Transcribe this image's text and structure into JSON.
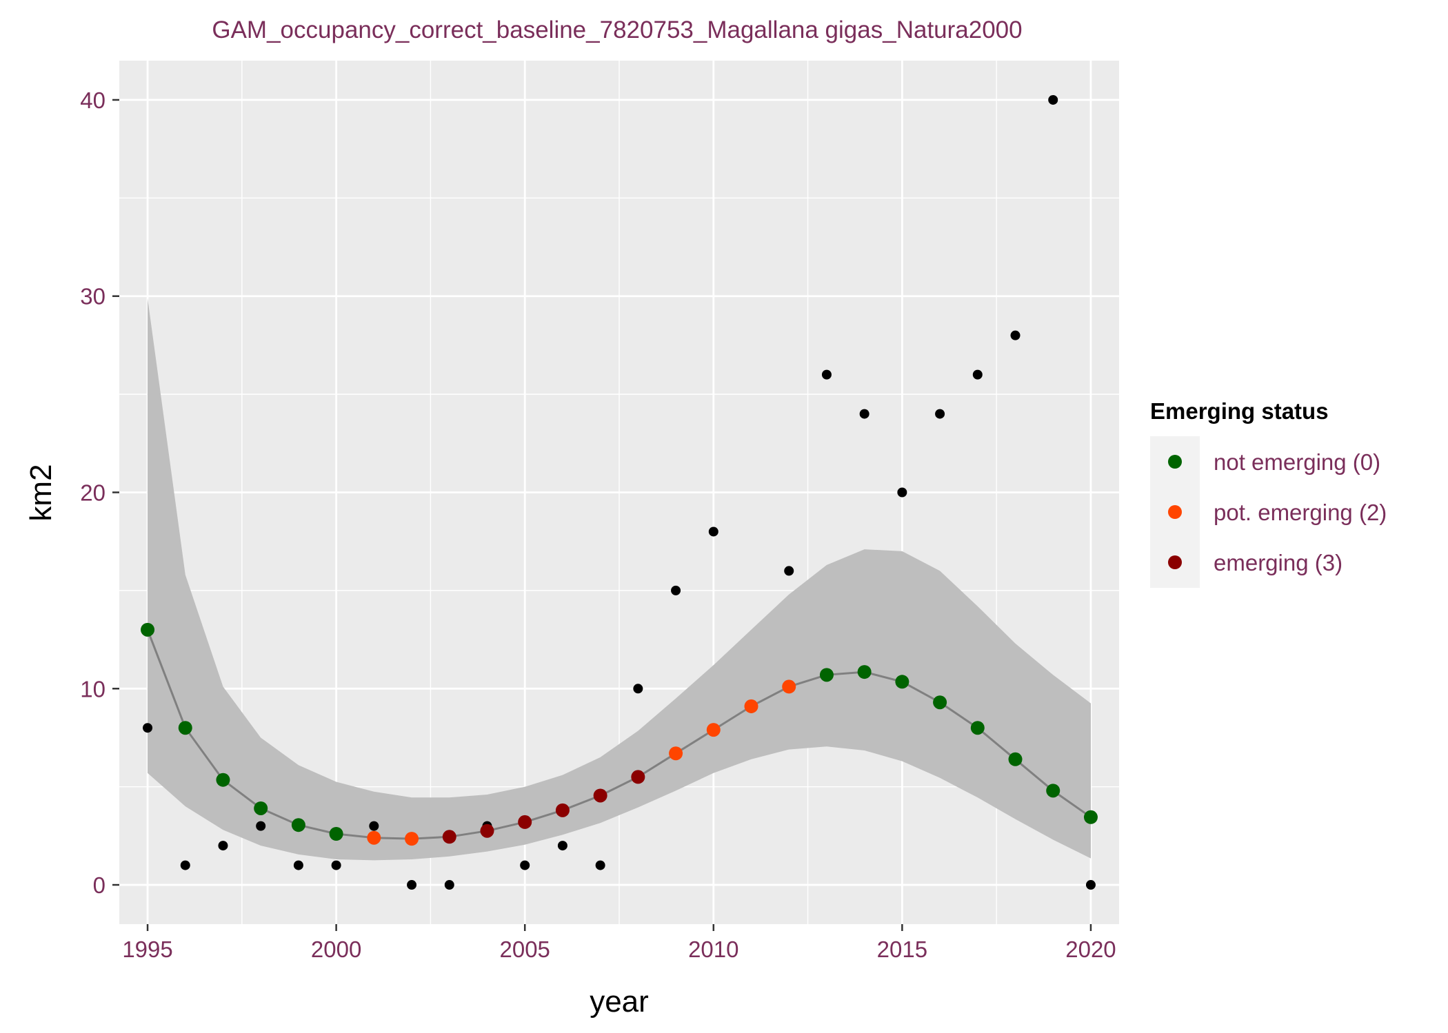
{
  "chart_data": {
    "type": "line",
    "title": "GAM_occupancy_correct_baseline_7820753_Magallana gigas_Natura2000",
    "xlabel": "year",
    "ylabel": "km2",
    "xlim": [
      1994.25,
      2020.75
    ],
    "ylim": [
      -2,
      42
    ],
    "x_ticks": [
      1995,
      2000,
      2005,
      2010,
      2015,
      2020
    ],
    "y_ticks": [
      0,
      10,
      20,
      30,
      40
    ],
    "grid": true,
    "observed_points": {
      "x": [
        1995,
        1996,
        1997,
        1998,
        1999,
        2000,
        2001,
        2002,
        2003,
        2004,
        2005,
        2006,
        2007,
        2008,
        2009,
        2010,
        2011,
        2012,
        2013,
        2014,
        2015,
        2016,
        2017,
        2018,
        2019,
        2020
      ],
      "y": [
        8,
        1,
        2,
        3,
        1,
        1,
        3,
        0,
        0,
        3,
        1,
        2,
        1,
        10,
        15,
        18,
        9,
        16,
        26,
        24,
        20,
        24,
        26,
        28,
        40,
        0
      ]
    },
    "fitted": {
      "x": [
        1995,
        1996,
        1997,
        1998,
        1999,
        2000,
        2001,
        2002,
        2003,
        2004,
        2005,
        2006,
        2007,
        2008,
        2009,
        2010,
        2011,
        2012,
        2013,
        2014,
        2015,
        2016,
        2017,
        2018,
        2019,
        2020
      ],
      "y": [
        13.0,
        8.0,
        5.35,
        3.9,
        3.05,
        2.6,
        2.4,
        2.35,
        2.45,
        2.75,
        3.2,
        3.8,
        4.55,
        5.5,
        6.7,
        7.9,
        9.1,
        10.1,
        10.7,
        10.85,
        10.35,
        9.3,
        8.0,
        6.4,
        4.8,
        3.45
      ],
      "lower": [
        5.7,
        4.0,
        2.8,
        2.0,
        1.55,
        1.3,
        1.25,
        1.3,
        1.45,
        1.7,
        2.05,
        2.55,
        3.15,
        3.95,
        4.8,
        5.7,
        6.4,
        6.9,
        7.05,
        6.85,
        6.3,
        5.45,
        4.45,
        3.35,
        2.3,
        1.35
      ],
      "upper": [
        29.9,
        15.8,
        10.1,
        7.5,
        6.1,
        5.25,
        4.75,
        4.45,
        4.45,
        4.6,
        5.0,
        5.6,
        6.5,
        7.85,
        9.5,
        11.2,
        13.0,
        14.8,
        16.3,
        17.1,
        17.0,
        16.0,
        14.2,
        12.3,
        10.7,
        9.25
      ],
      "status": [
        0,
        0,
        0,
        0,
        0,
        0,
        2,
        2,
        3,
        3,
        3,
        3,
        3,
        3,
        2,
        2,
        2,
        2,
        0,
        0,
        0,
        0,
        0,
        0,
        0,
        0
      ]
    },
    "legend": {
      "title": "Emerging status",
      "position": "right",
      "entries": [
        {
          "code": 0,
          "label": "not emerging (0)",
          "color": "#006400"
        },
        {
          "code": 2,
          "label": "pot. emerging (2)",
          "color": "#FF4500"
        },
        {
          "code": 3,
          "label": "emerging (3)",
          "color": "#8B0000"
        }
      ]
    },
    "colors": {
      "panel_bg": "#EBEBEB",
      "grid": "#FFFFFF",
      "ribbon": "#BEBEBE",
      "line": "#808080",
      "observed": "#000000",
      "tick_text": "#7A2E5A",
      "title_text": "#7A2E5A",
      "axis_title": "#000000"
    }
  }
}
